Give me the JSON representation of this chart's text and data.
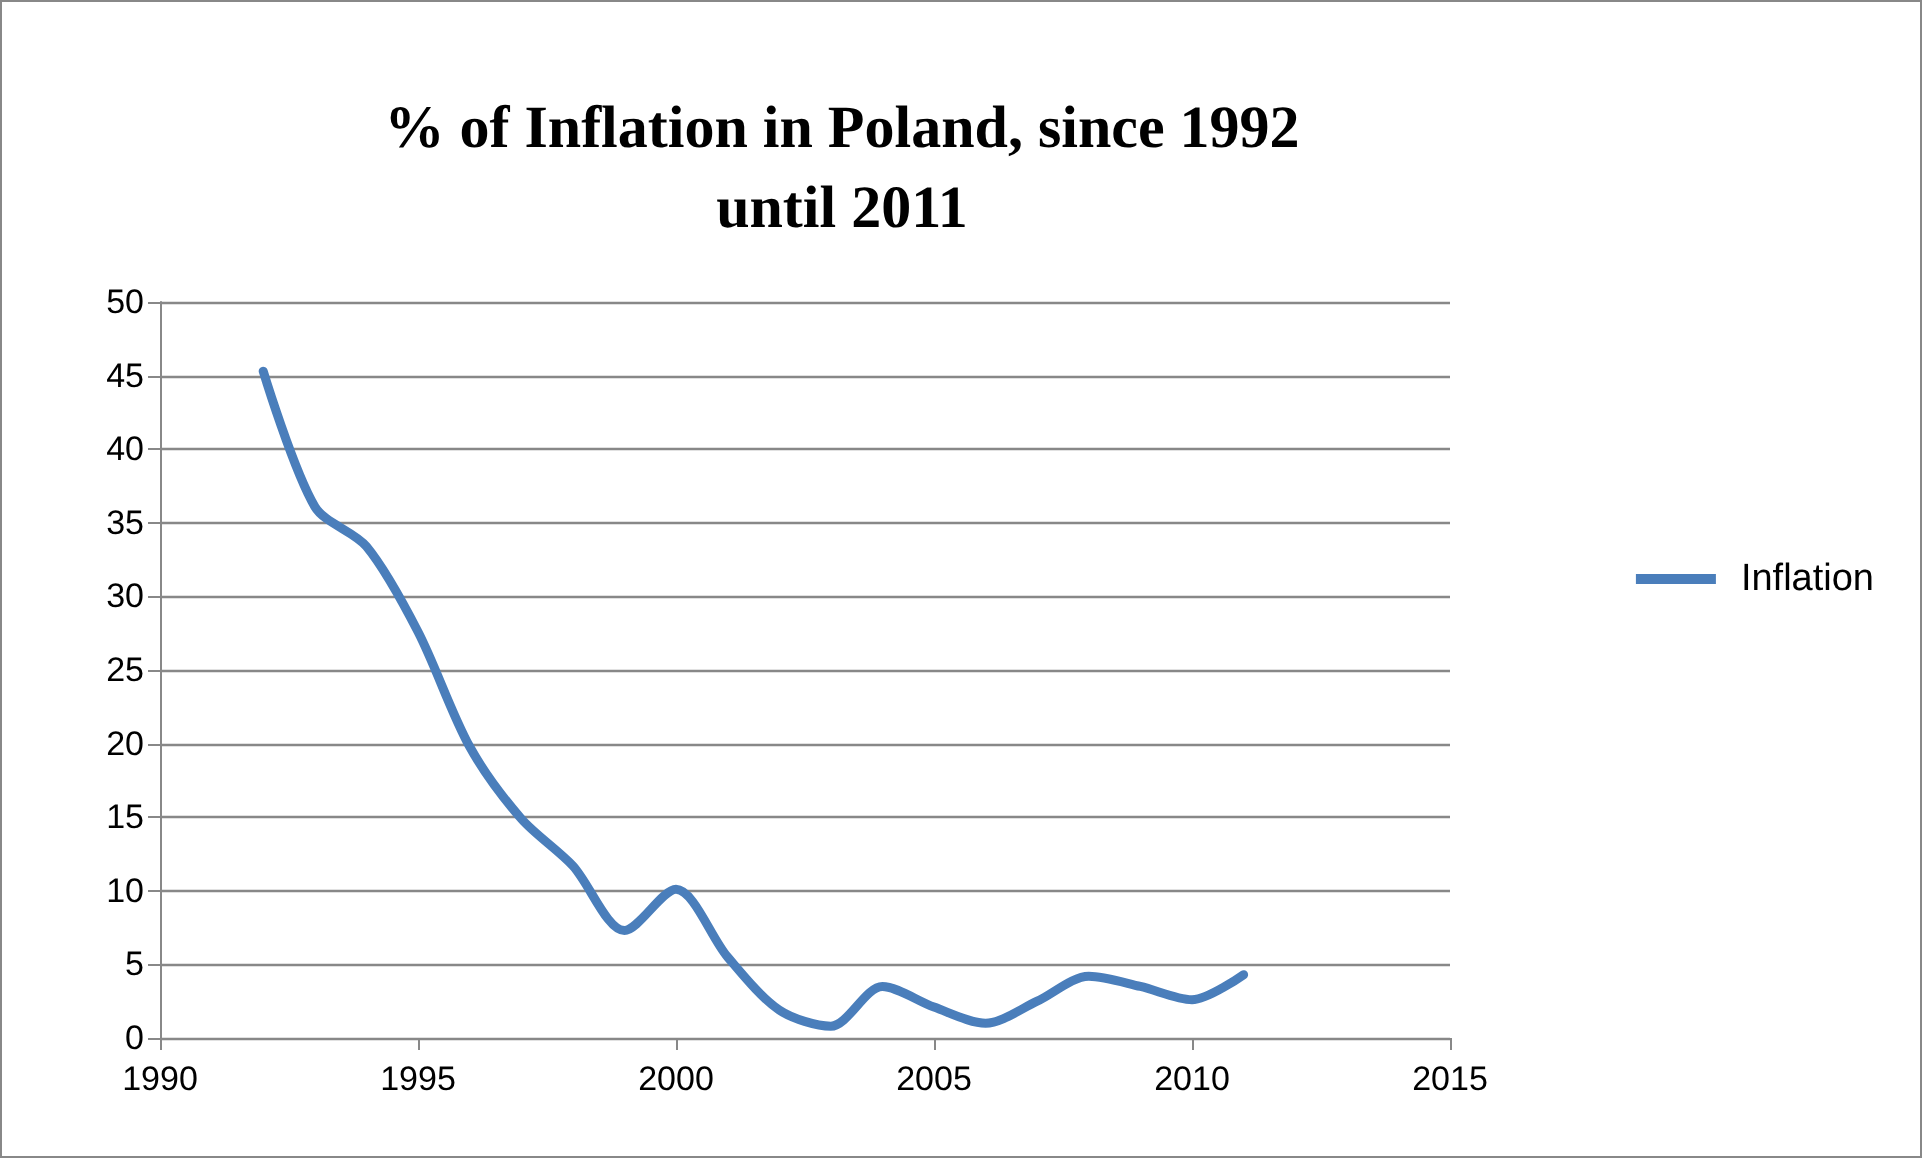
{
  "chart_data": {
    "type": "line",
    "title": "% of Inflation in Poland, since 1992\nuntil 2011",
    "x": [
      1992,
      1993,
      1994,
      1995,
      1996,
      1997,
      1998,
      1999,
      2000,
      2001,
      2002,
      2003,
      2004,
      2005,
      2006,
      2007,
      2008,
      2009,
      2010,
      2011
    ],
    "series": [
      {
        "name": "Inflation",
        "color": "#4a7ebb",
        "values": [
          45.3,
          36.1,
          33.4,
          27.6,
          19.8,
          14.9,
          11.7,
          7.3,
          10.1,
          5.5,
          1.9,
          0.8,
          3.5,
          2.1,
          1.0,
          2.5,
          4.2,
          3.5,
          2.6,
          4.3
        ]
      }
    ],
    "xlim": [
      1990,
      2015
    ],
    "xticks": [
      1990,
      1995,
      2000,
      2005,
      2010,
      2015
    ],
    "ylim": [
      0,
      50
    ],
    "yticks": [
      0,
      5,
      10,
      15,
      20,
      25,
      30,
      35,
      40,
      45,
      50
    ],
    "grid": "y",
    "legend": "right",
    "marker": "none",
    "line_style": "solid"
  }
}
